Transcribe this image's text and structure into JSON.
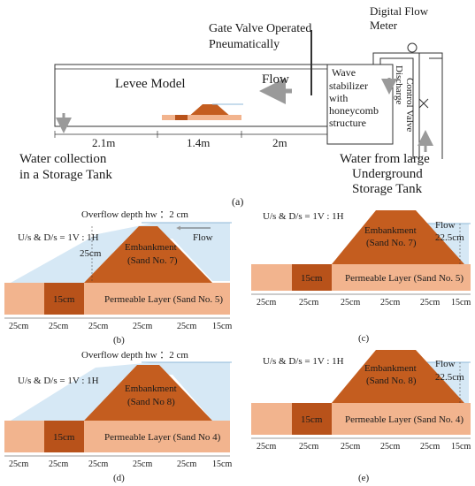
{
  "panel_a": {
    "gate_valve_line1": "Gate Valve Operated",
    "gate_valve_line2": "Pneumatically",
    "digital_flow_line1": "Digital Flow",
    "digital_flow_line2": "Meter",
    "levee_model": "Levee Model",
    "flow": "Flow",
    "wave_line1": "Wave",
    "wave_line2": "stabilizer",
    "wave_line3": "with",
    "wave_line4": "honeycomb",
    "wave_line5": "structure",
    "discharge_line1": "Discharge",
    "discharge_line2": "Control Valve",
    "dim_1": "2.1m",
    "dim_2": "1.4m",
    "dim_3": "2m",
    "water_collection_line1": "Water collection",
    "water_collection_line2": "in a Storage Tank",
    "water_from_line1": "Water from large",
    "water_from_line2": "Underground",
    "water_from_line3": "Storage Tank",
    "caption": "(a)"
  },
  "panel_b": {
    "overflow": "Overflow depth hw  ：2 cm",
    "slope": "U/s & D/s = 1V : 1H",
    "embankment_line1": "Embankment",
    "embankment_line2": "(Sand No. 7)",
    "flow": "Flow",
    "height": "25cm",
    "layer_height": "15cm",
    "permeable": "Permeable Layer (Sand No. 5)",
    "dims": [
      "25cm",
      "25cm",
      "25cm",
      "25cm",
      "25cm",
      "15cm"
    ],
    "caption": "(b)"
  },
  "panel_c": {
    "slope": "U/s & D/s = 1V : 1H",
    "embankment_line1": "Embankment",
    "embankment_line2": "(Sand No. 7)",
    "flow": "Flow",
    "depth": "22.5cm",
    "layer_height": "15cm",
    "permeable": "Permeable Layer (Sand No. 5)",
    "dims": [
      "25cm",
      "25cm",
      "25cm",
      "25cm",
      "25cm",
      "15cm"
    ],
    "caption": "(c)"
  },
  "panel_d": {
    "overflow": "Overflow depth hw  ：2 cm",
    "slope": "U/s & D/s = 1V : 1H",
    "embankment_line1": "Embankment",
    "embankment_line2": "(Sand No 8)",
    "layer_height": "15cm",
    "permeable": "Permeable Layer (Sand No 4)",
    "dims": [
      "25cm",
      "25cm",
      "25cm",
      "25cm",
      "25cm",
      "15cm"
    ],
    "caption": "(d)"
  },
  "panel_e": {
    "slope": "U/s & D/s = 1V : 1H",
    "embankment_line1": "Embankment",
    "embankment_line2": "(Sand No. 8)",
    "flow": "Flow",
    "depth": "22.5cm",
    "layer_height": "15cm",
    "permeable": "Permeable Layer (Sand No. 4)",
    "dims": [
      "25cm",
      "25cm",
      "25cm",
      "25cm",
      "25cm",
      "15cm"
    ],
    "caption": "(e)"
  },
  "colors": {
    "embankment": "#c45d1f",
    "core": "#b8521a",
    "permeable": "#f2b48e",
    "water": "#d6e8f5",
    "water_edge": "#8fb8d8",
    "arrow": "#9a9a9a"
  }
}
